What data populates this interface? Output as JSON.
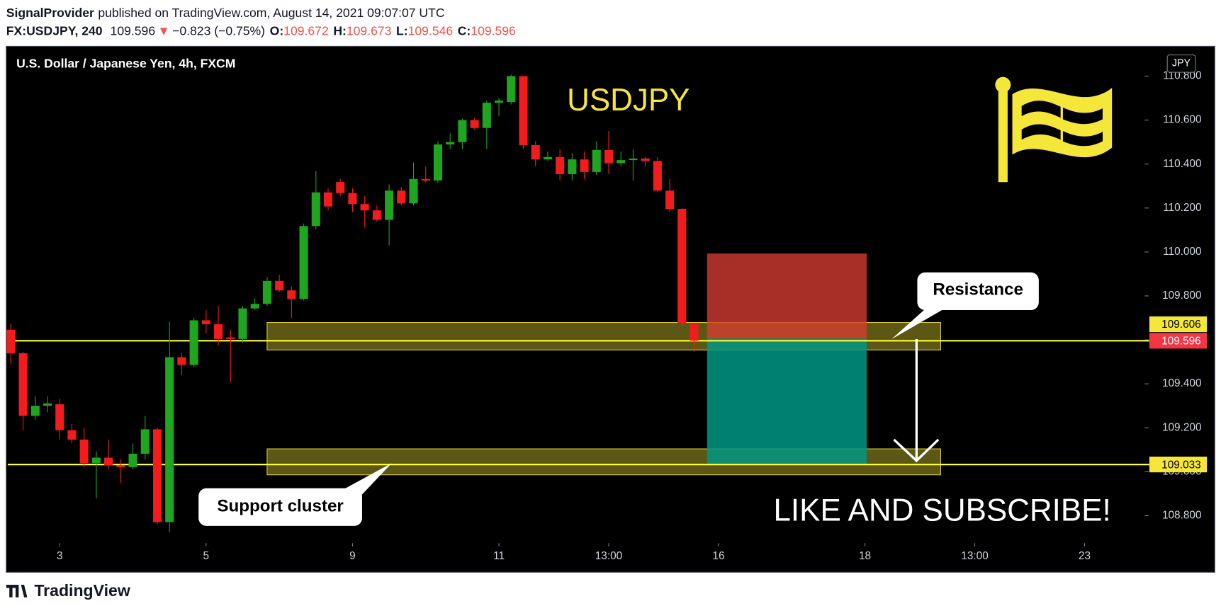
{
  "header": {
    "author": "SignalProvider",
    "published": "published on TradingView.com, August 14, 2021 09:07:07 UTC",
    "quote": {
      "symbol": "FX:USDJPY, 240",
      "last": "109.596",
      "direction": "▼",
      "change": "−0.823 (−0.75%)",
      "ohlc": [
        {
          "label": "O:",
          "value": "109.672"
        },
        {
          "label": "H:",
          "value": "109.673"
        },
        {
          "label": "L:",
          "value": "109.546"
        },
        {
          "label": "C:",
          "value": "109.596"
        }
      ]
    }
  },
  "chart_data": {
    "type": "candlestick",
    "title": "U.S. Dollar / Japanese Yen, 4h, FXCM",
    "currency": "JPY",
    "up_color": "#1fa51f",
    "down_color": "#f21c1c",
    "open": [
      109.646,
      109.539,
      109.254,
      109.3,
      109.307,
      109.189,
      109.146,
      109.039,
      109.064,
      109.029,
      109.021,
      109.082,
      109.193,
      108.771,
      109.521,
      109.486,
      109.689,
      109.671,
      109.611,
      109.604,
      109.743,
      109.764,
      109.868,
      109.825,
      109.786,
      110.118,
      110.271,
      110.318,
      110.268,
      110.218,
      110.189,
      110.146,
      110.279,
      110.221,
      110.332,
      110.325,
      110.489,
      110.5,
      110.6,
      110.564,
      110.679,
      110.682,
      110.8,
      110.486,
      110.421,
      110.432,
      110.354,
      110.421,
      110.364,
      110.464,
      110.404,
      110.418,
      110.425,
      110.414,
      110.279,
      110.196,
      109.672
    ],
    "high": [
      109.675,
      109.546,
      109.343,
      109.343,
      109.332,
      109.218,
      109.2,
      109.093,
      109.146,
      109.057,
      109.129,
      109.254,
      109.2,
      109.682,
      109.539,
      109.7,
      109.736,
      109.754,
      109.646,
      109.754,
      109.789,
      109.886,
      109.896,
      109.843,
      110.129,
      110.368,
      110.289,
      110.332,
      110.289,
      110.254,
      110.211,
      110.307,
      110.296,
      110.407,
      110.389,
      110.504,
      110.539,
      110.607,
      110.611,
      110.689,
      110.7,
      110.807,
      110.8,
      110.504,
      110.457,
      110.468,
      110.45,
      110.457,
      110.504,
      110.55,
      110.457,
      110.468,
      110.432,
      110.432,
      110.332,
      110.2,
      109.673
    ],
    "low": [
      109.486,
      109.189,
      109.236,
      109.271,
      109.146,
      109.129,
      109.021,
      108.879,
      109.014,
      108.95,
      109.011,
      109.057,
      108.761,
      108.725,
      109.439,
      109.475,
      109.629,
      109.575,
      109.407,
      109.586,
      109.736,
      109.754,
      109.818,
      109.7,
      109.779,
      110.104,
      110.189,
      110.254,
      110.182,
      110.111,
      110.136,
      110.029,
      110.211,
      110.211,
      110.318,
      110.314,
      110.468,
      110.468,
      110.557,
      110.468,
      110.618,
      110.671,
      110.468,
      110.389,
      110.414,
      110.325,
      110.325,
      110.332,
      110.35,
      110.354,
      110.389,
      110.325,
      110.389,
      110.271,
      110.182,
      109.664,
      109.546
    ],
    "close": [
      109.539,
      109.254,
      109.3,
      109.311,
      109.189,
      109.146,
      109.039,
      109.064,
      109.029,
      109.021,
      109.082,
      109.193,
      108.771,
      109.521,
      109.486,
      109.689,
      109.671,
      109.604,
      109.604,
      109.743,
      109.764,
      109.868,
      109.825,
      109.786,
      110.118,
      110.271,
      110.207,
      110.268,
      110.218,
      110.189,
      110.146,
      110.279,
      110.221,
      110.332,
      110.325,
      110.489,
      110.5,
      110.6,
      110.564,
      110.679,
      110.689,
      110.8,
      110.486,
      110.421,
      110.432,
      110.354,
      110.421,
      110.364,
      110.464,
      110.404,
      110.418,
      110.425,
      110.414,
      110.279,
      110.196,
      109.675,
      109.596
    ],
    "xlim": [
      -0.255,
      92.8
    ],
    "xticks": [
      {
        "value": 4,
        "label": "3"
      },
      {
        "value": 16,
        "label": "5"
      },
      {
        "value": 28,
        "label": "9"
      },
      {
        "value": 40,
        "label": "11"
      },
      {
        "value": 49,
        "label": "13:00"
      },
      {
        "value": 58,
        "label": "16"
      },
      {
        "value": 70,
        "label": "18"
      },
      {
        "value": 79,
        "label": "13:00"
      },
      {
        "value": 88,
        "label": "23"
      }
    ],
    "ylim": [
      108.682,
      110.932
    ],
    "yticks": [
      {
        "value": 108.8,
        "label": "108.800"
      },
      {
        "value": 109.0,
        "label": "109.000"
      },
      {
        "value": 109.2,
        "label": "109.200"
      },
      {
        "value": 109.4,
        "label": "109.400"
      },
      {
        "value": 109.6,
        "label": "109.600"
      },
      {
        "value": 109.8,
        "label": "109.800"
      },
      {
        "value": 110.0,
        "label": "110.000"
      },
      {
        "value": 110.2,
        "label": "110.200"
      },
      {
        "value": 110.4,
        "label": "110.400"
      },
      {
        "value": 110.6,
        "label": "110.600"
      },
      {
        "value": 110.8,
        "label": "110.800"
      }
    ],
    "hlines": [
      {
        "value": 109.596,
        "color": "#ffff33"
      },
      {
        "value": 109.033,
        "color": "#ffff33"
      }
    ],
    "zones": [
      {
        "top": 109.679,
        "bottom": 109.554
      },
      {
        "top": 109.104,
        "bottom": 108.986
      }
    ],
    "position": {
      "stop": 109.993,
      "entry": 109.606,
      "target": 109.033
    },
    "price_tags": [
      {
        "value": 109.606,
        "color": "#f5e63a",
        "text_color": "#000000"
      },
      {
        "value": 109.596,
        "color": "#f23645",
        "text_color": "#ffffff"
      },
      {
        "value": 109.033,
        "color": "#f5e63a",
        "text_color": "#000000"
      }
    ],
    "annotations": {
      "symbol": "USDJPY",
      "resistance": "Resistance",
      "support": "Support cluster",
      "cta": "LIKE AND SUBSCRIBE!"
    }
  },
  "footer": {
    "brand": "TradingView"
  }
}
